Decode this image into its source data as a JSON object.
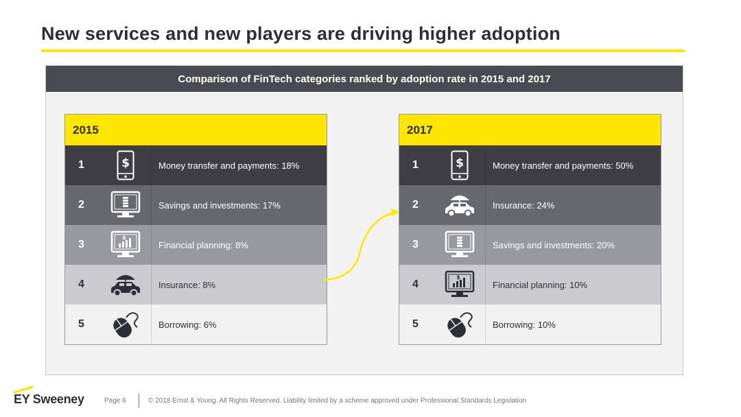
{
  "slide": {
    "title": "New services and new players are driving higher adoption"
  },
  "panel": {
    "header": "Comparison of FinTech categories ranked by adoption rate in 2015 and 2017"
  },
  "tables": [
    {
      "year": "2015",
      "rows": [
        {
          "rank": "1",
          "label": "Money transfer and payments: 18%",
          "icon": "phone-dollar-icon"
        },
        {
          "rank": "2",
          "label": "Savings and investments: 17%",
          "icon": "monitor-coins-icon"
        },
        {
          "rank": "3",
          "label": "Financial planning: 8%",
          "icon": "monitor-chart-icon"
        },
        {
          "rank": "4",
          "label": "Insurance: 8%",
          "icon": "car-umbrella-icon"
        },
        {
          "rank": "5",
          "label": "Borrowing: 6%",
          "icon": "mouse-icon"
        }
      ]
    },
    {
      "year": "2017",
      "rows": [
        {
          "rank": "1",
          "label": "Money transfer and payments: 50%",
          "icon": "phone-dollar-icon"
        },
        {
          "rank": "2",
          "label": "Insurance: 24%",
          "icon": "car-umbrella-icon"
        },
        {
          "rank": "3",
          "label": "Savings and investments: 20%",
          "icon": "monitor-coins-icon"
        },
        {
          "rank": "4",
          "label": "Financial planning: 10%",
          "icon": "monitor-chart-icon"
        },
        {
          "rank": "5",
          "label": "Borrowing: 10%",
          "icon": "mouse-icon"
        }
      ]
    }
  ],
  "footer": {
    "brand": "EY Sweeney",
    "page": "Page 6",
    "copyright": "© 2018 Ernst & Young. All Rights Reserved. Liability limited by a scheme approved under Professional Standards Legislation"
  },
  "colors": {
    "accent_yellow": "#ffe600",
    "dark_grey": "#2e2e38",
    "arrow": "#ffe600"
  }
}
